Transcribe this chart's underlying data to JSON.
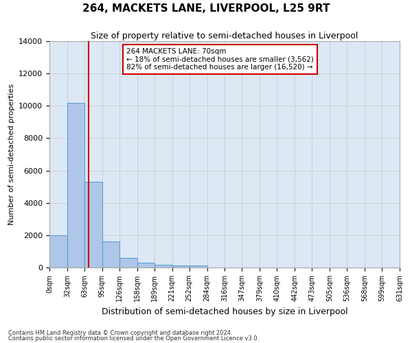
{
  "title": "264, MACKETS LANE, LIVERPOOL, L25 9RT",
  "subtitle": "Size of property relative to semi-detached houses in Liverpool",
  "xlabel": "Distribution of semi-detached houses by size in Liverpool",
  "ylabel": "Number of semi-detached properties",
  "footnote1": "Contains HM Land Registry data © Crown copyright and database right 2024.",
  "footnote2": "Contains public sector information licensed under the Open Government Licence v3.0.",
  "bin_edges": [
    0,
    32,
    63,
    95,
    126,
    158,
    189,
    221,
    252,
    284,
    316,
    347,
    379,
    410,
    442,
    473,
    505,
    536,
    568,
    599,
    631
  ],
  "bar_heights": [
    2000,
    10200,
    5300,
    1600,
    600,
    280,
    170,
    120,
    120,
    0,
    0,
    0,
    0,
    0,
    0,
    0,
    0,
    0,
    0,
    0
  ],
  "bar_color": "#aec6e8",
  "bar_edgecolor": "#5a9fd4",
  "property_size": 70,
  "vline_color": "#cc0000",
  "annotation_text": "264 MACKETS LANE: 70sqm\n← 18% of semi-detached houses are smaller (3,562)\n82% of semi-detached houses are larger (16,520) →",
  "annotation_box_edgecolor": "#cc0000",
  "ylim": [
    0,
    14000
  ],
  "yticks": [
    0,
    2000,
    4000,
    6000,
    8000,
    10000,
    12000,
    14000
  ],
  "grid_color": "#cccccc",
  "background_color": "#dde8f5",
  "title_fontsize": 11,
  "subtitle_fontsize": 9,
  "tick_label_fontsize": 7,
  "ylabel_fontsize": 8,
  "xlabel_fontsize": 9
}
